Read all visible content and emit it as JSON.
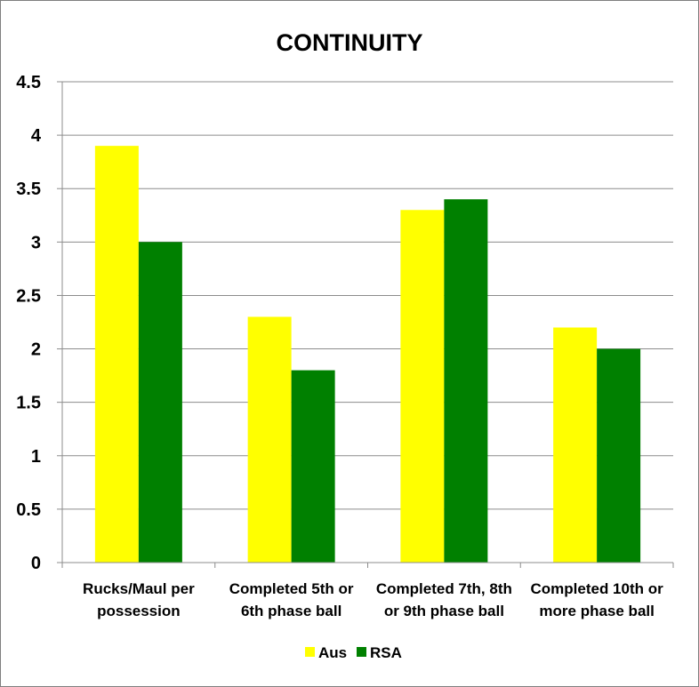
{
  "chart_data": {
    "type": "bar",
    "title": "CONTINUITY",
    "categories": [
      [
        "Rucks/Maul per",
        "possession"
      ],
      [
        "Completed 5th or",
        "6th phase ball"
      ],
      [
        "Completed 7th, 8th",
        "or 9th phase ball"
      ],
      [
        "Completed 10th or",
        "more phase ball"
      ]
    ],
    "series": [
      {
        "name": "Aus",
        "color": "#ffff00",
        "values": [
          3.9,
          2.3,
          3.3,
          2.2
        ]
      },
      {
        "name": "RSA",
        "color": "#008000",
        "values": [
          3.0,
          1.8,
          3.4,
          2.0
        ]
      }
    ],
    "ylim": [
      0,
      4.5
    ],
    "yticks": [
      "0",
      "0.5",
      "1",
      "1.5",
      "2",
      "2.5",
      "3",
      "3.5",
      "4",
      "4.5"
    ],
    "grid": true,
    "legend": "bottom"
  }
}
